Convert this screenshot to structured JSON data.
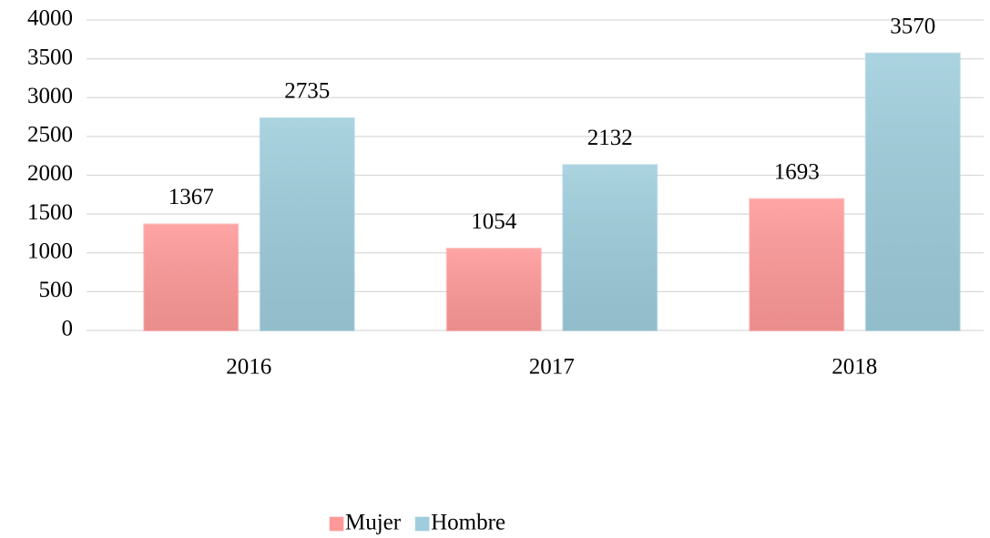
{
  "chart_data": {
    "type": "bar",
    "categories": [
      "2016",
      "2017",
      "2018"
    ],
    "series": [
      {
        "name": "Mujer",
        "color": "#ff9999",
        "values": [
          1367,
          1054,
          1693
        ]
      },
      {
        "name": "Hombre",
        "color": "#9fcddc",
        "values": [
          2735,
          2132,
          3570
        ]
      }
    ],
    "ylim": [
      0,
      4000
    ],
    "yticks": [
      0,
      500,
      1000,
      1500,
      2000,
      2500,
      3000,
      3500,
      4000
    ],
    "grid": true,
    "legend": "bottom"
  }
}
